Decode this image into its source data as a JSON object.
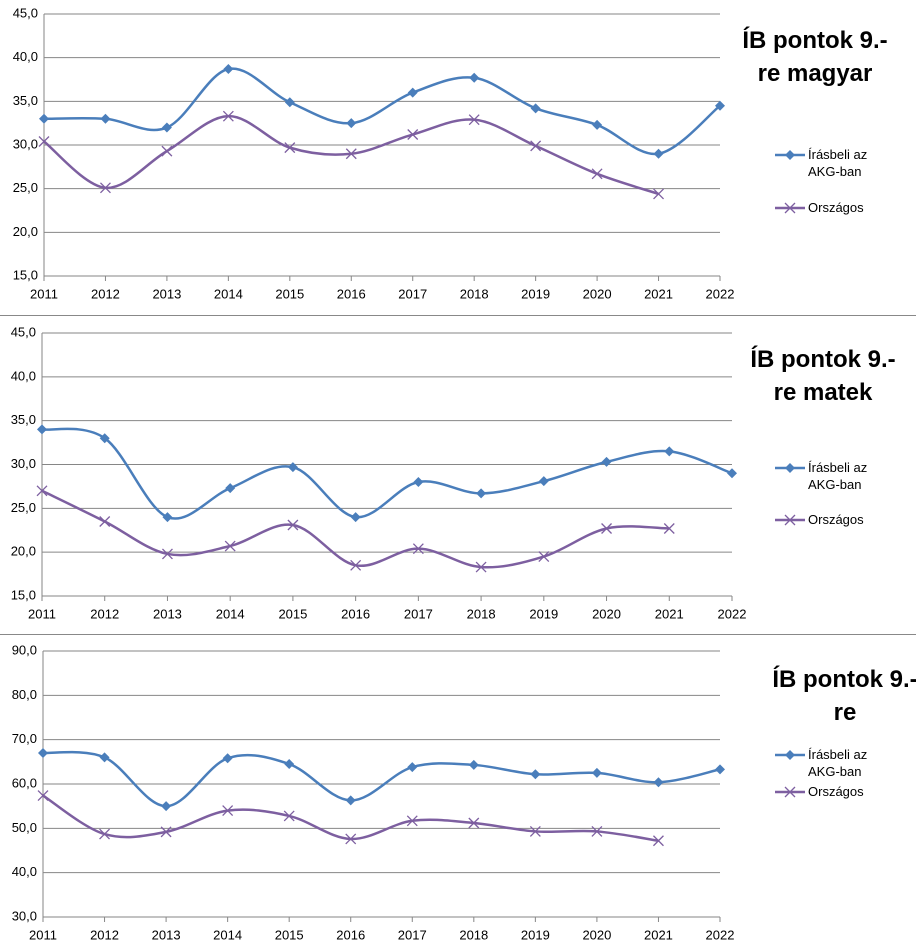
{
  "chart_data": [
    {
      "type": "line",
      "title": "ÍB pontok 9.-re magyar",
      "categories": [
        "2011",
        "2012",
        "2013",
        "2014",
        "2015",
        "2016",
        "2017",
        "2018",
        "2019",
        "2020",
        "2021",
        "2022"
      ],
      "series": [
        {
          "name": "Írásbeli az AKG-ban",
          "color": "#4a7ebb",
          "marker": "diamond",
          "values": [
            33.0,
            33.0,
            32.0,
            38.7,
            34.9,
            32.5,
            36.0,
            37.7,
            34.2,
            32.3,
            29.0,
            34.5
          ]
        },
        {
          "name": "Országos",
          "color": "#7d5fa0",
          "marker": "x",
          "values": [
            30.4,
            25.1,
            29.3,
            33.3,
            29.7,
            29.0,
            31.2,
            32.9,
            29.9,
            26.7,
            24.4,
            null
          ]
        }
      ],
      "ylim": [
        15,
        45
      ],
      "yticks": [
        {
          "value": 15,
          "label": "15,0"
        },
        {
          "value": 20,
          "label": "20,0"
        },
        {
          "value": 25,
          "label": "25,0"
        },
        {
          "value": 30,
          "label": "30,0"
        },
        {
          "value": 35,
          "label": "35,0"
        },
        {
          "value": 40,
          "label": "40,0"
        },
        {
          "value": 45,
          "label": "45,0"
        }
      ],
      "grid": true,
      "legend": "right"
    },
    {
      "type": "line",
      "title": "ÍB pontok 9.-re matek",
      "categories": [
        "2011",
        "2012",
        "2013",
        "2014",
        "2015",
        "2016",
        "2017",
        "2018",
        "2019",
        "2020",
        "2021",
        "2022"
      ],
      "series": [
        {
          "name": "Írásbeli az AKG-ban",
          "color": "#4a7ebb",
          "marker": "diamond",
          "values": [
            34.0,
            33.0,
            24.0,
            27.3,
            29.7,
            24.0,
            28.0,
            26.7,
            28.1,
            30.3,
            31.5,
            29.0
          ]
        },
        {
          "name": "Országos",
          "color": "#7d5fa0",
          "marker": "x",
          "values": [
            27.0,
            23.5,
            19.8,
            20.7,
            23.1,
            18.5,
            20.4,
            18.3,
            19.5,
            22.7,
            22.7,
            null
          ]
        }
      ],
      "ylim": [
        15,
        45
      ],
      "yticks": [
        {
          "value": 15,
          "label": "15,0"
        },
        {
          "value": 20,
          "label": "20,0"
        },
        {
          "value": 25,
          "label": "25,0"
        },
        {
          "value": 30,
          "label": "30,0"
        },
        {
          "value": 35,
          "label": "35,0"
        },
        {
          "value": 40,
          "label": "40,0"
        },
        {
          "value": 45,
          "label": "45,0"
        }
      ],
      "grid": true,
      "legend": "right"
    },
    {
      "type": "line",
      "title": "ÍB pontok 9.-re",
      "categories": [
        "2011",
        "2012",
        "2013",
        "2014",
        "2015",
        "2016",
        "2017",
        "2018",
        "2019",
        "2020",
        "2021",
        "2022"
      ],
      "series": [
        {
          "name": "Írásbeli az AKG-ban",
          "color": "#4a7ebb",
          "marker": "diamond",
          "values": [
            67.0,
            66.0,
            55.0,
            65.8,
            64.5,
            56.3,
            63.8,
            64.3,
            62.2,
            62.5,
            60.4,
            63.3
          ]
        },
        {
          "name": "Országos",
          "color": "#7d5fa0",
          "marker": "x",
          "values": [
            57.4,
            48.7,
            49.2,
            54.0,
            52.8,
            47.6,
            51.7,
            51.2,
            49.3,
            49.3,
            47.2,
            null
          ]
        }
      ],
      "ylim": [
        30,
        90
      ],
      "yticks": [
        {
          "value": 30,
          "label": "30,0"
        },
        {
          "value": 40,
          "label": "40,0"
        },
        {
          "value": 50,
          "label": "50,0"
        },
        {
          "value": 60,
          "label": "60,0"
        },
        {
          "value": 70,
          "label": "70,0"
        },
        {
          "value": 80,
          "label": "80,0"
        },
        {
          "value": 90,
          "label": "90,0"
        }
      ],
      "grid": true,
      "legend": "right"
    }
  ]
}
